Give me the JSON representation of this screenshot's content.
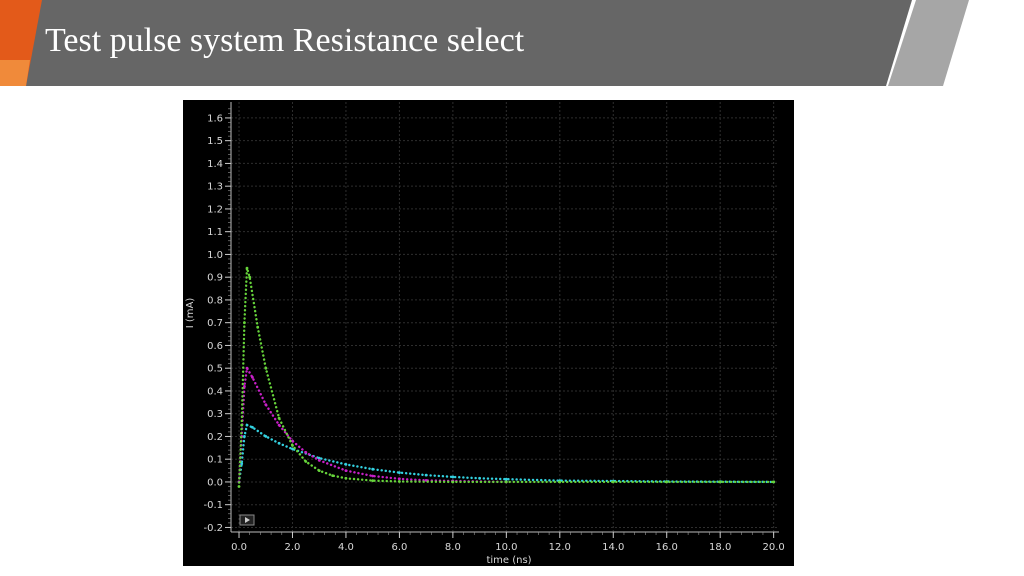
{
  "slide": {
    "title": "Test pulse system Resistance select",
    "colors": {
      "banner": "#666666",
      "accent_orange": "#e35a1a",
      "stripe_light": "#a6a6a6"
    }
  },
  "plot_window": {
    "play_icon": "play-icon"
  },
  "chart_data": {
    "type": "line",
    "xlabel": "time (ns)",
    "ylabel": "I (mA)",
    "xlim": [
      -0.3,
      20.2
    ],
    "ylim": [
      -0.22,
      1.67
    ],
    "xticks": [
      0.0,
      2.0,
      4.0,
      6.0,
      8.0,
      10.0,
      12.0,
      14.0,
      16.0,
      18.0,
      20.0
    ],
    "xtick_labels": [
      "0.0",
      "2.0",
      "4.0",
      "6.0",
      "8.0",
      "10.0",
      "12.0",
      "14.0",
      "16.0",
      "18.0",
      "20.0"
    ],
    "yticks": [
      -0.2,
      -0.1,
      0.0,
      0.1,
      0.2,
      0.3,
      0.4,
      0.5,
      0.6,
      0.7,
      0.8,
      0.9,
      1.0,
      1.1,
      1.2,
      1.3,
      1.4,
      1.5,
      1.6
    ],
    "ytick_labels": [
      "-0.2",
      "-0.1",
      "0.0",
      "0.1",
      "0.2",
      "0.3",
      "0.4",
      "0.5",
      "0.6",
      "0.7",
      "0.8",
      "0.9",
      "1.0",
      "1.1",
      "1.2",
      "1.3",
      "1.4",
      "1.5",
      "1.6"
    ],
    "grid": true,
    "background": "#000000",
    "series": [
      {
        "color": "#33d1e0",
        "x": [
          0.0,
          0.1,
          0.2,
          0.3,
          0.5,
          1.0,
          1.5,
          2.0,
          3.0,
          4.0,
          5.0,
          6.0,
          7.0,
          8.0,
          9.0,
          10.0,
          12.0,
          14.0,
          16.0,
          18.0,
          20.0
        ],
        "y": [
          0.0,
          0.08,
          0.2,
          0.25,
          0.24,
          0.2,
          0.17,
          0.145,
          0.105,
          0.077,
          0.056,
          0.041,
          0.03,
          0.022,
          0.016,
          0.012,
          0.006,
          0.004,
          0.002,
          0.001,
          0.0
        ]
      },
      {
        "color": "#c820c8",
        "x": [
          0.0,
          0.1,
          0.2,
          0.3,
          0.5,
          1.0,
          1.5,
          2.0,
          2.5,
          3.0,
          4.0,
          5.0,
          6.0,
          7.0,
          8.0,
          10.0
        ],
        "y": [
          0.0,
          0.2,
          0.42,
          0.5,
          0.46,
          0.34,
          0.25,
          0.18,
          0.13,
          0.095,
          0.05,
          0.026,
          0.014,
          0.007,
          0.004,
          0.0
        ]
      },
      {
        "color": "#66d33a",
        "x": [
          0.0,
          0.1,
          0.2,
          0.3,
          0.4,
          0.7,
          1.0,
          1.5,
          2.0,
          2.5,
          3.0,
          3.5,
          4.0,
          5.0,
          6.0,
          8.0,
          10.0,
          12.0,
          14.0,
          16.0,
          18.0,
          20.0
        ],
        "y": [
          -0.02,
          0.25,
          0.7,
          0.94,
          0.9,
          0.68,
          0.5,
          0.28,
          0.16,
          0.09,
          0.05,
          0.028,
          0.016,
          0.006,
          0.002,
          0.0,
          0.0,
          0.0,
          0.0,
          0.0,
          0.0,
          0.0
        ]
      }
    ]
  }
}
